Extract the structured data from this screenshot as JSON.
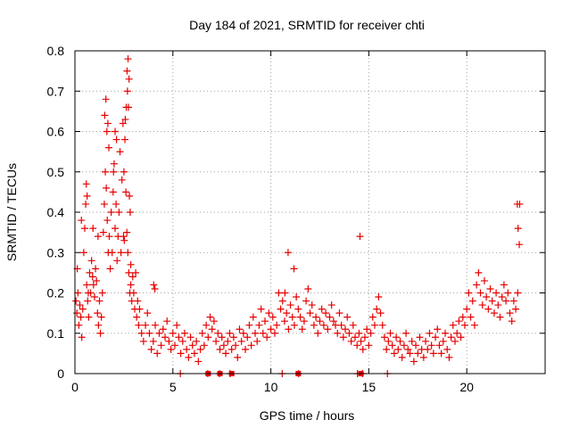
{
  "colors": {
    "series": "#e60000",
    "grid": "#a0a0a0",
    "axis": "#000000",
    "background": "#ffffff"
  },
  "chart_data": {
    "type": "scatter",
    "title": "Day 184 of 2021, SRMTID for receiver chti",
    "xlabel": "GPS time / hours",
    "ylabel": "SRMTID / TECUs",
    "xlim": [
      0,
      24
    ],
    "ylim": [
      0,
      0.8
    ],
    "xticks": [
      0,
      5,
      10,
      15,
      20
    ],
    "xtick_labels": [
      "0",
      "5",
      "10",
      "15",
      "20"
    ],
    "yticks": [
      0,
      0.1,
      0.2,
      0.3,
      0.4,
      0.5,
      0.6,
      0.7,
      0.8
    ],
    "ytick_labels": [
      "0",
      "0.1",
      "0.2",
      "0.3",
      "0.4",
      "0.5",
      "0.6",
      "0.7",
      "0.8"
    ],
    "grid": true,
    "marker": "plus",
    "series": [
      {
        "name": "SRMTID",
        "x": [
          0.05,
          0.1,
          0.15,
          0.2,
          0.25,
          0.3,
          0.35,
          0.4,
          0.45,
          0.5,
          0.55,
          0.6,
          0.65,
          0.7,
          0.75,
          0.8,
          0.85,
          0.9,
          0.95,
          1.0,
          1.05,
          1.1,
          1.15,
          1.2,
          1.25,
          1.3,
          1.35,
          1.4,
          1.45,
          1.5,
          1.55,
          1.6,
          1.65,
          1.7,
          1.75,
          1.8,
          1.85,
          1.9,
          1.95,
          2.0,
          2.05,
          2.1,
          2.15,
          2.2,
          2.25,
          2.3,
          2.35,
          2.4,
          2.45,
          2.5,
          2.55,
          2.6,
          2.65,
          2.7,
          2.75,
          2.8,
          2.85,
          2.9,
          2.95,
          3.0,
          3.05,
          3.1,
          3.15,
          3.2,
          3.25,
          3.3,
          3.4,
          3.5,
          3.6,
          3.7,
          3.8,
          3.9,
          4.0,
          4.1,
          4.2,
          4.3,
          4.4,
          4.5,
          4.6,
          4.7,
          4.8,
          4.9,
          5.0,
          5.1,
          5.2,
          5.3,
          5.4,
          5.5,
          5.6,
          5.7,
          5.8,
          5.9,
          6.0,
          6.1,
          6.2,
          6.3,
          6.4,
          6.5,
          6.6,
          6.7,
          6.8,
          6.9,
          7.0,
          7.1,
          7.2,
          7.3,
          7.4,
          7.5,
          7.6,
          7.7,
          7.8,
          7.9,
          8.0,
          8.1,
          8.2,
          8.3,
          8.4,
          8.5,
          8.6,
          8.7,
          8.8,
          8.9,
          9.0,
          9.1,
          9.2,
          9.3,
          9.4,
          9.5,
          9.6,
          9.7,
          9.8,
          9.9,
          10.0,
          10.1,
          10.2,
          10.3,
          10.4,
          10.5,
          10.6,
          10.7,
          10.8,
          10.9,
          11.0,
          11.1,
          11.2,
          11.3,
          11.4,
          11.5,
          11.6,
          11.7,
          11.8,
          11.9,
          12.0,
          12.1,
          12.2,
          12.3,
          12.4,
          12.5,
          12.6,
          12.7,
          12.8,
          12.9,
          13.0,
          13.1,
          13.2,
          13.3,
          13.4,
          13.5,
          13.6,
          13.7,
          13.8,
          13.9,
          14.0,
          14.1,
          14.2,
          14.3,
          14.4,
          14.5,
          14.6,
          14.7,
          14.8,
          14.9,
          15.0,
          15.1,
          15.2,
          15.3,
          15.4,
          15.5,
          15.6,
          15.7,
          15.8,
          15.9,
          16.0,
          16.1,
          16.2,
          16.3,
          16.4,
          16.5,
          16.6,
          16.7,
          16.8,
          16.9,
          17.0,
          17.1,
          17.2,
          17.3,
          17.4,
          17.5,
          17.6,
          17.7,
          17.8,
          17.9,
          18.0,
          18.1,
          18.2,
          18.3,
          18.4,
          18.5,
          18.6,
          18.7,
          18.8,
          18.9,
          19.0,
          19.1,
          19.2,
          19.3,
          19.4,
          19.5,
          19.6,
          19.7,
          19.8,
          19.9,
          20.0,
          20.1,
          20.2,
          20.3,
          20.4,
          20.5,
          20.6,
          20.7,
          20.8,
          20.9,
          21.0,
          21.1,
          21.2,
          21.3,
          21.4,
          21.5,
          21.6,
          21.7,
          21.8,
          21.9,
          22.0,
          22.1,
          22.2,
          22.3,
          22.4,
          22.5,
          22.6,
          22.7,
          0.12,
          0.33,
          0.58,
          0.62,
          0.68,
          0.92,
          1.18,
          1.52,
          1.58,
          1.63,
          1.68,
          1.73,
          1.97,
          2.05,
          2.12,
          2.48,
          2.52,
          2.57,
          2.62,
          2.66,
          2.68,
          2.71,
          2.73,
          2.76,
          2.78,
          2.82,
          2.85,
          4.02,
          4.08,
          5.38,
          6.78,
          7.38,
          7.92,
          10.58,
          10.72,
          10.88,
          11.18,
          11.42,
          14.42,
          14.55,
          14.68,
          15.95,
          22.58,
          22.62,
          22.68
        ],
        "y": [
          0.18,
          0.15,
          0.2,
          0.12,
          0.17,
          0.14,
          0.09,
          0.16,
          0.3,
          0.36,
          0.42,
          0.22,
          0.18,
          0.14,
          0.25,
          0.2,
          0.28,
          0.24,
          0.22,
          0.19,
          0.26,
          0.23,
          0.15,
          0.12,
          0.18,
          0.1,
          0.14,
          0.2,
          0.35,
          0.42,
          0.5,
          0.46,
          0.38,
          0.3,
          0.34,
          0.26,
          0.4,
          0.3,
          0.45,
          0.52,
          0.36,
          0.42,
          0.28,
          0.34,
          0.4,
          0.55,
          0.3,
          0.48,
          0.62,
          0.5,
          0.58,
          0.45,
          0.35,
          0.3,
          0.25,
          0.2,
          0.22,
          0.18,
          0.24,
          0.2,
          0.16,
          0.25,
          0.14,
          0.18,
          0.12,
          0.16,
          0.1,
          0.08,
          0.12,
          0.15,
          0.1,
          0.06,
          0.08,
          0.12,
          0.05,
          0.1,
          0.07,
          0.11,
          0.09,
          0.13,
          0.08,
          0.06,
          0.1,
          0.07,
          0.12,
          0.09,
          0.05,
          0.08,
          0.1,
          0.06,
          0.04,
          0.09,
          0.07,
          0.05,
          0.08,
          0.03,
          0.06,
          0.1,
          0.07,
          0.12,
          0.09,
          0.14,
          0.11,
          0.13,
          0.08,
          0.1,
          0.06,
          0.09,
          0.07,
          0.05,
          0.08,
          0.1,
          0.06,
          0.09,
          0.07,
          0.04,
          0.11,
          0.08,
          0.1,
          0.06,
          0.09,
          0.12,
          0.07,
          0.14,
          0.1,
          0.08,
          0.12,
          0.16,
          0.1,
          0.13,
          0.09,
          0.15,
          0.11,
          0.14,
          0.1,
          0.12,
          0.2,
          0.16,
          0.18,
          0.13,
          0.15,
          0.11,
          0.17,
          0.14,
          0.12,
          0.19,
          0.16,
          0.14,
          0.11,
          0.13,
          0.18,
          0.21,
          0.15,
          0.17,
          0.12,
          0.14,
          0.1,
          0.13,
          0.16,
          0.12,
          0.15,
          0.11,
          0.14,
          0.17,
          0.13,
          0.12,
          0.1,
          0.15,
          0.12,
          0.09,
          0.11,
          0.14,
          0.1,
          0.08,
          0.12,
          0.09,
          0.07,
          0.1,
          0.08,
          0.06,
          0.09,
          0.11,
          0.07,
          0.1,
          0.14,
          0.12,
          0.16,
          0.19,
          0.15,
          0.12,
          0.09,
          0.06,
          0.08,
          0.1,
          0.07,
          0.05,
          0.09,
          0.06,
          0.08,
          0.04,
          0.07,
          0.1,
          0.06,
          0.05,
          0.08,
          0.03,
          0.07,
          0.05,
          0.09,
          0.06,
          0.04,
          0.08,
          0.06,
          0.1,
          0.07,
          0.05,
          0.09,
          0.11,
          0.07,
          0.05,
          0.08,
          0.1,
          0.06,
          0.04,
          0.09,
          0.12,
          0.08,
          0.1,
          0.13,
          0.09,
          0.14,
          0.12,
          0.16,
          0.2,
          0.14,
          0.18,
          0.12,
          0.22,
          0.25,
          0.2,
          0.17,
          0.23,
          0.19,
          0.16,
          0.21,
          0.18,
          0.15,
          0.2,
          0.17,
          0.14,
          0.19,
          0.22,
          0.18,
          0.2,
          0.15,
          0.13,
          0.18,
          0.16,
          0.2,
          0.42,
          0.26,
          0.38,
          0.47,
          0.44,
          0.2,
          0.36,
          0.34,
          0.64,
          0.68,
          0.6,
          0.62,
          0.56,
          0.5,
          0.6,
          0.58,
          0.34,
          0.33,
          0.63,
          0.66,
          0.75,
          0.7,
          0.78,
          0.66,
          0.73,
          0.44,
          0.4,
          0.27,
          0.22,
          0.21,
          0.0,
          0.0,
          0.0,
          0.0,
          0.0,
          0.2,
          0.3,
          0.26,
          0.0,
          0.0,
          0.34,
          0.0,
          0.0,
          0.42,
          0.36,
          0.32
        ]
      }
    ],
    "baseline_markers": {
      "type": "square",
      "x": [
        6.8,
        7.4,
        8.0,
        11.4,
        14.6
      ],
      "y": [
        0,
        0,
        0,
        0,
        0
      ]
    }
  }
}
